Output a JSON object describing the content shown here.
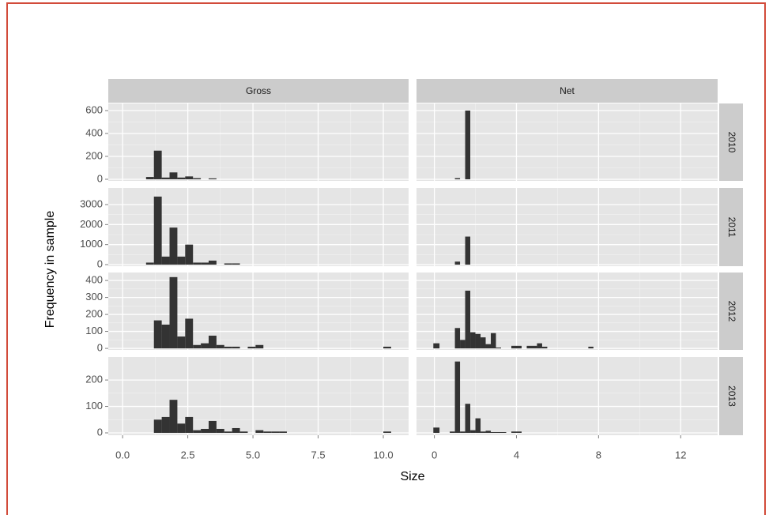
{
  "chart_data": {
    "type": "histogram",
    "x_label": "Size",
    "y_label": "Frequency in sample",
    "grid": true,
    "color": "#333333",
    "columns": [
      {
        "label": "Gross",
        "xlim": [
          -0.55,
          10.97
        ],
        "xticks": [
          {
            "value": 0,
            "label": "0.0"
          },
          2.5,
          {
            "value": 5,
            "label": "5.0"
          },
          7.5,
          {
            "value": 10,
            "label": "10.0"
          }
        ]
      },
      {
        "label": "Net",
        "xlim": [
          -0.87,
          13.8
        ],
        "xticks": [
          0,
          4,
          8,
          12
        ]
      }
    ],
    "rows": [
      {
        "label": "2010",
        "ylim": [
          -14,
          662
        ],
        "yticks": [
          0,
          200,
          400,
          600
        ]
      },
      {
        "label": "2011",
        "ylim": [
          -79,
          3829
        ],
        "yticks": [
          0,
          1000,
          2000,
          3000
        ]
      },
      {
        "label": "2012",
        "ylim": [
          -9,
          447
        ],
        "yticks": [
          0,
          100,
          200,
          300,
          400
        ]
      },
      {
        "label": "2013",
        "ylim": [
          -9,
          287
        ],
        "yticks": [
          0,
          100,
          200
        ]
      }
    ],
    "panels": [
      [
        {
          "bins": [
            0.9,
            1.2,
            1.5,
            1.8,
            2.1,
            2.4,
            2.7,
            3.0,
            3.3,
            3.6
          ],
          "counts": [
            20,
            250,
            15,
            60,
            15,
            25,
            10,
            0,
            8
          ]
        },
        {
          "bins": [
            1.0,
            1.25,
            1.5,
            1.75
          ],
          "counts": [
            10,
            0,
            600
          ]
        }
      ],
      [
        {
          "bins": [
            0.9,
            1.2,
            1.5,
            1.8,
            2.1,
            2.4,
            2.7,
            3.0,
            3.3,
            3.6,
            3.9,
            4.2,
            4.5
          ],
          "counts": [
            100,
            3400,
            400,
            1850,
            400,
            1000,
            100,
            100,
            200,
            0,
            60,
            60
          ]
        },
        {
          "bins": [
            1.0,
            1.25,
            1.5,
            1.75
          ],
          "counts": [
            150,
            0,
            1400
          ]
        }
      ],
      [
        {
          "bins": [
            1.2,
            1.5,
            1.8,
            2.1,
            2.4,
            2.7,
            3.0,
            3.3,
            3.6,
            3.9,
            4.2,
            4.5,
            4.8,
            5.1,
            5.4,
            10.0,
            10.3
          ],
          "counts": [
            165,
            140,
            420,
            70,
            175,
            20,
            30,
            75,
            20,
            10,
            10,
            0,
            10,
            20,
            0,
            10
          ]
        },
        {
          "bins": [
            -0.05,
            0.25,
            1.0,
            1.25,
            1.5,
            1.75,
            2.0,
            2.25,
            2.5,
            2.75,
            3.0,
            3.25,
            3.75,
            4.25,
            4.5,
            5.0,
            5.25,
            5.5,
            7.5,
            7.75
          ],
          "counts": [
            30,
            0,
            120,
            50,
            340,
            95,
            85,
            65,
            25,
            90,
            5,
            0,
            15,
            0,
            15,
            30,
            10,
            0,
            10
          ]
        }
      ],
      [
        {
          "bins": [
            1.2,
            1.5,
            1.8,
            2.1,
            2.4,
            2.7,
            3.0,
            3.3,
            3.6,
            3.9,
            4.2,
            4.5,
            4.8,
            5.1,
            5.4,
            5.7,
            6.0,
            6.3,
            10.0,
            10.3
          ],
          "counts": [
            50,
            60,
            125,
            35,
            60,
            10,
            15,
            45,
            15,
            5,
            18,
            5,
            0,
            10,
            5,
            5,
            5,
            0,
            5
          ]
        },
        {
          "bins": [
            -0.05,
            0.25,
            0.75,
            1.0,
            1.25,
            1.5,
            1.75,
            2.0,
            2.25,
            2.5,
            2.75,
            3.5,
            3.75,
            4.25
          ],
          "counts": [
            20,
            0,
            5,
            270,
            5,
            110,
            10,
            55,
            5,
            8,
            3,
            0,
            5
          ]
        }
      ]
    ]
  }
}
